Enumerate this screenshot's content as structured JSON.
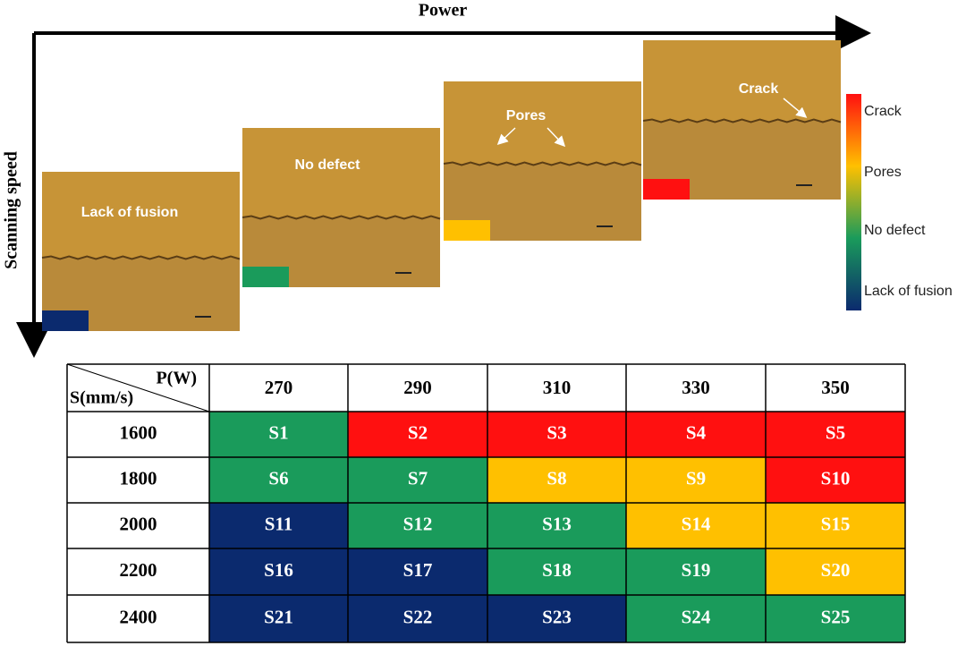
{
  "axes": {
    "x_label": "Power",
    "y_label": "Scanning speed"
  },
  "panels": [
    {
      "label": "Lack of fusion",
      "color": "#0b2a6e"
    },
    {
      "label": "No defect",
      "color": "#1a9b5b"
    },
    {
      "label": "Pores",
      "color": "#ffc000"
    },
    {
      "label": "Crack",
      "color": "#ff1010"
    }
  ],
  "legend": {
    "labels": [
      "Crack",
      "Pores",
      "No defect",
      "Lack of fusion"
    ]
  },
  "table": {
    "corner": {
      "top": "P(W)",
      "bottom": "S(mm/s)"
    },
    "columns": [
      270,
      290,
      310,
      330,
      350
    ],
    "rows": [
      {
        "label": 1600,
        "cells": [
          {
            "text": "S1",
            "color": "#1a9b5b"
          },
          {
            "text": "S2",
            "color": "#ff1010"
          },
          {
            "text": "S3",
            "color": "#ff1010"
          },
          {
            "text": "S4",
            "color": "#ff1010"
          },
          {
            "text": "S5",
            "color": "#ff1010"
          }
        ]
      },
      {
        "label": 1800,
        "cells": [
          {
            "text": "S6",
            "color": "#1a9b5b"
          },
          {
            "text": "S7",
            "color": "#1a9b5b"
          },
          {
            "text": "S8",
            "color": "#ffc000"
          },
          {
            "text": "S9",
            "color": "#ffc000"
          },
          {
            "text": "S10",
            "color": "#ff1010"
          }
        ]
      },
      {
        "label": 2000,
        "cells": [
          {
            "text": "S11",
            "color": "#0b2a6e"
          },
          {
            "text": "S12",
            "color": "#1a9b5b"
          },
          {
            "text": "S13",
            "color": "#1a9b5b"
          },
          {
            "text": "S14",
            "color": "#ffc000"
          },
          {
            "text": "S15",
            "color": "#ffc000"
          }
        ]
      },
      {
        "label": 2200,
        "cells": [
          {
            "text": "S16",
            "color": "#0b2a6e"
          },
          {
            "text": "S17",
            "color": "#0b2a6e"
          },
          {
            "text": "S18",
            "color": "#1a9b5b"
          },
          {
            "text": "S19",
            "color": "#1a9b5b"
          },
          {
            "text": "S20",
            "color": "#ffc000"
          }
        ]
      },
      {
        "label": 2400,
        "cells": [
          {
            "text": "S21",
            "color": "#0b2a6e"
          },
          {
            "text": "S22",
            "color": "#0b2a6e"
          },
          {
            "text": "S23",
            "color": "#0b2a6e"
          },
          {
            "text": "S24",
            "color": "#1a9b5b"
          },
          {
            "text": "S25",
            "color": "#1a9b5b"
          }
        ]
      }
    ]
  }
}
